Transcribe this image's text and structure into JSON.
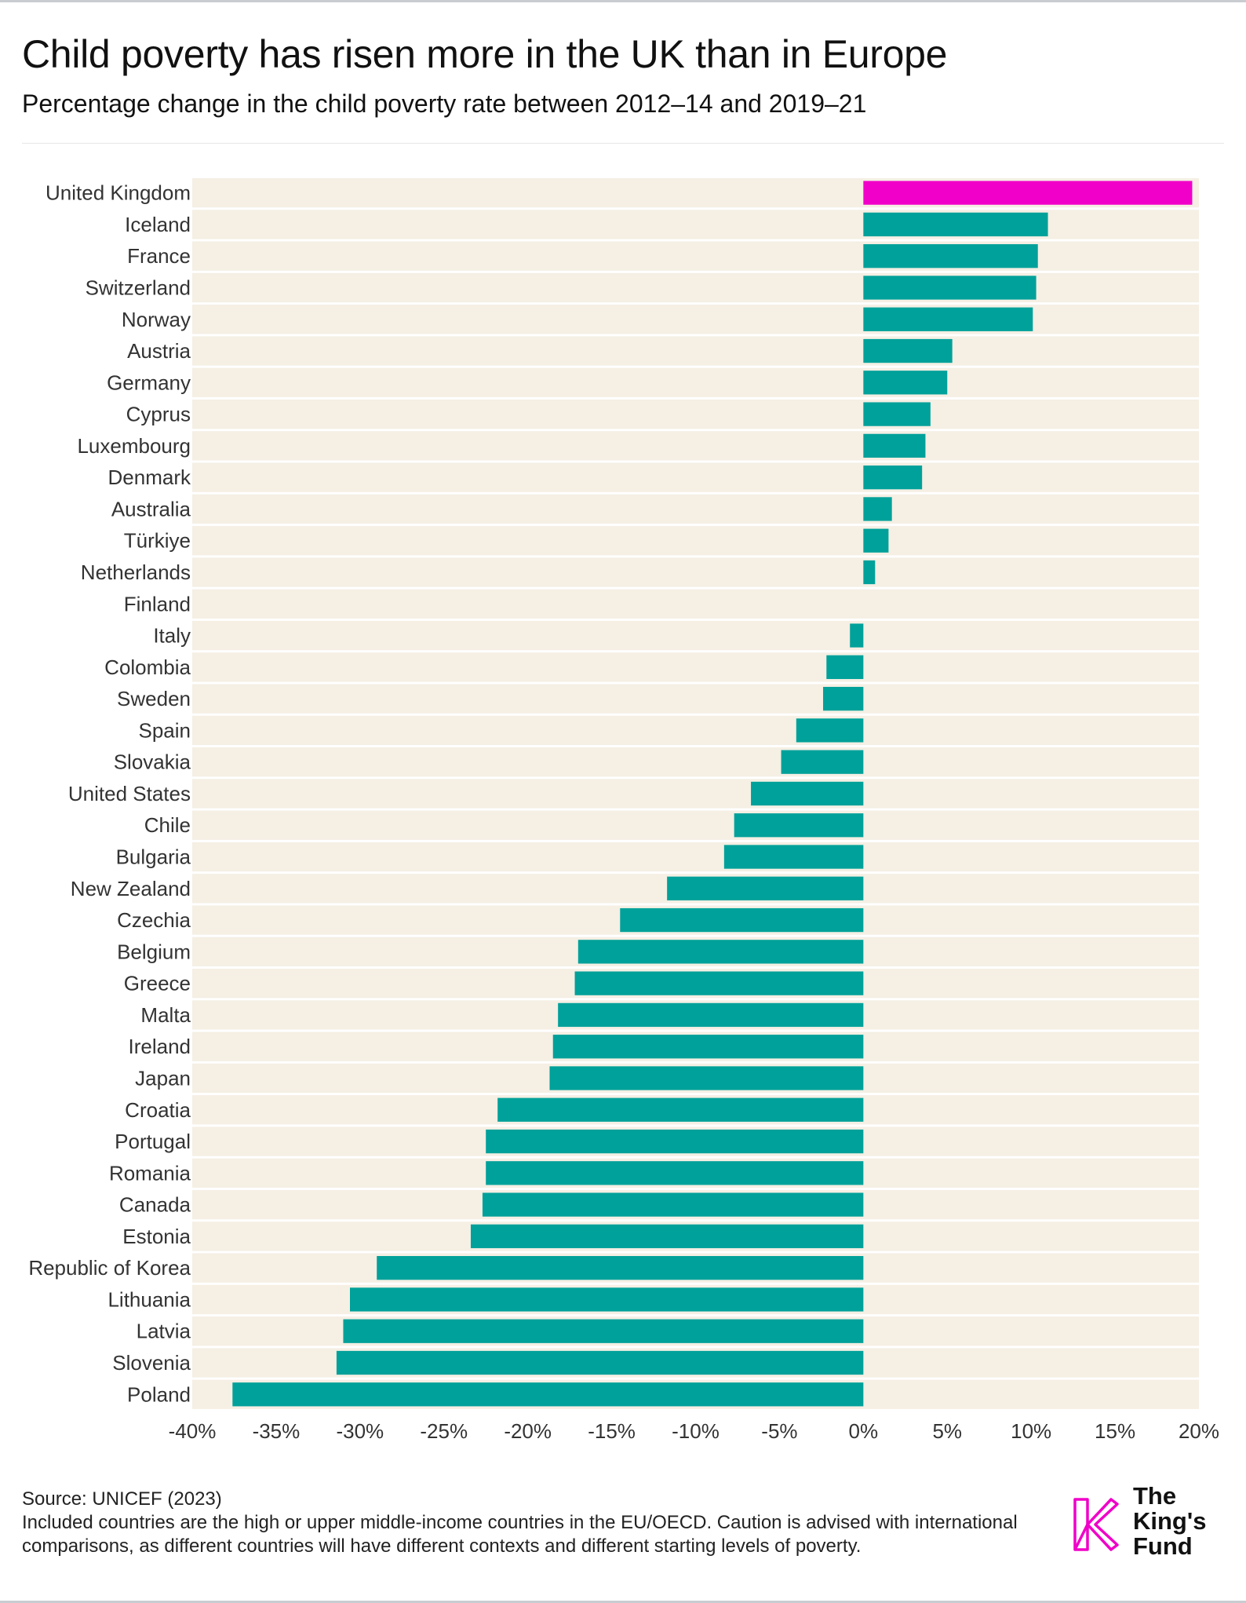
{
  "title": "Child poverty has risen more in the UK than in Europe",
  "subtitle": "Percentage change in the child poverty rate between 2012–14 and 2019–21",
  "source": "Source: UNICEF (2023)",
  "note": "Included countries are the high or upper middle-income countries in the EU/OECD. Caution is advised with international comparisons, as different countries will have different contexts and different starting levels of poverty.",
  "logo": {
    "line1": "The",
    "line2": "King's",
    "line3": "Fund"
  },
  "colors": {
    "highlight": "#f000c8",
    "bar": "#00a19a",
    "row_background": "#f5efe4",
    "logo": "#f000c8"
  },
  "chart_data": {
    "type": "bar",
    "orientation": "horizontal",
    "categories": [
      "United Kingdom",
      "Iceland",
      "France",
      "Switzerland",
      "Norway",
      "Austria",
      "Germany",
      "Cyprus",
      "Luxembourg",
      "Denmark",
      "Australia",
      "Türkiye",
      "Netherlands",
      "Finland",
      "Italy",
      "Colombia",
      "Sweden",
      "Spain",
      "Slovakia",
      "United States",
      "Chile",
      "Bulgaria",
      "New Zealand",
      "Czechia",
      "Belgium",
      "Greece",
      "Malta",
      "Ireland",
      "Japan",
      "Croatia",
      "Portugal",
      "Romania",
      "Canada",
      "Estonia",
      "Republic of Korea",
      "Lithuania",
      "Latvia",
      "Slovenia",
      "Poland"
    ],
    "values": [
      19.6,
      11.0,
      10.4,
      10.3,
      10.1,
      5.3,
      5.0,
      4.0,
      3.7,
      3.5,
      1.7,
      1.5,
      0.7,
      0.0,
      -0.8,
      -2.2,
      -2.4,
      -4.0,
      -4.9,
      -6.7,
      -7.7,
      -8.3,
      -11.7,
      -14.5,
      -17.0,
      -17.2,
      -18.2,
      -18.5,
      -18.7,
      -21.8,
      -22.5,
      -22.5,
      -22.7,
      -23.4,
      -29.0,
      -30.6,
      -31.0,
      -31.4,
      -37.6
    ],
    "highlight": "United Kingdom",
    "xlim": [
      -40,
      20
    ],
    "xticks": [
      -40,
      -35,
      -30,
      -25,
      -20,
      -15,
      -10,
      -5,
      0,
      5,
      10,
      15,
      20
    ],
    "xtick_labels": [
      "-40%",
      "-35%",
      "-30%",
      "-25%",
      "-20%",
      "-15%",
      "-10%",
      "-5%",
      "0%",
      "5%",
      "10%",
      "15%",
      "20%"
    ],
    "xlabel": "",
    "ylabel": "",
    "grid": false
  }
}
